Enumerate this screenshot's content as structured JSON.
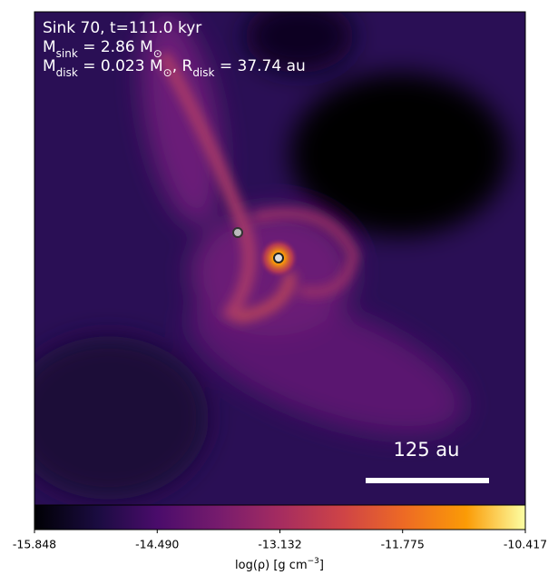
{
  "chart_data": {
    "type": "image",
    "annotations": [
      {
        "parts": [
          "Sink 70, t=111.0 kyr"
        ]
      },
      {
        "parts": [
          "M",
          "sink",
          " = 2.86 M",
          "⊙"
        ]
      },
      {
        "parts": [
          "M",
          "disk",
          " = 0.023 M",
          "⊙",
          ", R",
          "disk",
          " = 37.74 au"
        ]
      }
    ],
    "scalebar_label": "125 au",
    "colorbar": {
      "label_parts": [
        "log(ρ) [g cm",
        "−3",
        "]"
      ],
      "lim": [
        -15.848,
        -10.417
      ],
      "ticks": [
        -15.848,
        {
          "value": -14.49,
          "label": "-14.490"
        },
        -13.132,
        -11.775,
        -10.417
      ]
    }
  }
}
